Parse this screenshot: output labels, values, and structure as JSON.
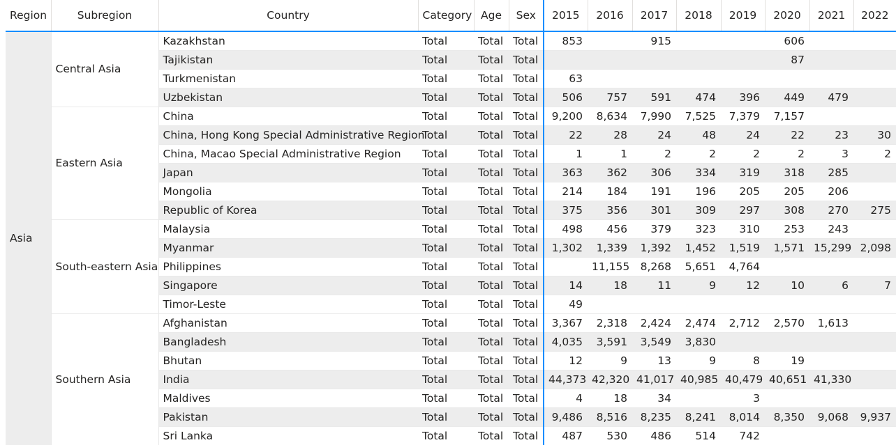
{
  "columns": [
    "Region",
    "Subregion",
    "Country",
    "Category",
    "Age",
    "Sex",
    "2015",
    "2016",
    "2017",
    "2018",
    "2019",
    "2020",
    "2021",
    "2022"
  ],
  "region": "Asia",
  "groups": [
    {
      "subregion": "Central Asia",
      "rows": [
        {
          "country": "Kazakhstan",
          "category": "Total",
          "age": "Total",
          "sex": "Total",
          "values": [
            "853",
            "",
            "915",
            "",
            "",
            "606",
            "",
            ""
          ]
        },
        {
          "country": "Tajikistan",
          "category": "Total",
          "age": "Total",
          "sex": "Total",
          "values": [
            "",
            "",
            "",
            "",
            "",
            "87",
            "",
            ""
          ]
        },
        {
          "country": "Turkmenistan",
          "category": "Total",
          "age": "Total",
          "sex": "Total",
          "values": [
            "63",
            "",
            "",
            "",
            "",
            "",
            "",
            ""
          ]
        },
        {
          "country": "Uzbekistan",
          "category": "Total",
          "age": "Total",
          "sex": "Total",
          "values": [
            "506",
            "757",
            "591",
            "474",
            "396",
            "449",
            "479",
            ""
          ]
        }
      ]
    },
    {
      "subregion": "Eastern Asia",
      "rows": [
        {
          "country": "China",
          "category": "Total",
          "age": "Total",
          "sex": "Total",
          "values": [
            "9,200",
            "8,634",
            "7,990",
            "7,525",
            "7,379",
            "7,157",
            "",
            ""
          ]
        },
        {
          "country": "China, Hong Kong Special Administrative Region",
          "category": "Total",
          "age": "Total",
          "sex": "Total",
          "values": [
            "22",
            "28",
            "24",
            "48",
            "24",
            "22",
            "23",
            "30"
          ]
        },
        {
          "country": "China, Macao Special Administrative Region",
          "category": "Total",
          "age": "Total",
          "sex": "Total",
          "values": [
            "1",
            "1",
            "2",
            "2",
            "2",
            "2",
            "3",
            "2"
          ]
        },
        {
          "country": "Japan",
          "category": "Total",
          "age": "Total",
          "sex": "Total",
          "values": [
            "363",
            "362",
            "306",
            "334",
            "319",
            "318",
            "285",
            ""
          ]
        },
        {
          "country": "Mongolia",
          "category": "Total",
          "age": "Total",
          "sex": "Total",
          "values": [
            "214",
            "184",
            "191",
            "196",
            "205",
            "205",
            "206",
            ""
          ]
        },
        {
          "country": "Republic of Korea",
          "category": "Total",
          "age": "Total",
          "sex": "Total",
          "values": [
            "375",
            "356",
            "301",
            "309",
            "297",
            "308",
            "270",
            "275"
          ]
        }
      ]
    },
    {
      "subregion": "South-eastern Asia",
      "rows": [
        {
          "country": "Malaysia",
          "category": "Total",
          "age": "Total",
          "sex": "Total",
          "values": [
            "498",
            "456",
            "379",
            "323",
            "310",
            "253",
            "243",
            ""
          ]
        },
        {
          "country": "Myanmar",
          "category": "Total",
          "age": "Total",
          "sex": "Total",
          "values": [
            "1,302",
            "1,339",
            "1,392",
            "1,452",
            "1,519",
            "1,571",
            "15,299",
            "2,098"
          ]
        },
        {
          "country": "Philippines",
          "category": "Total",
          "age": "Total",
          "sex": "Total",
          "values": [
            "",
            "11,155",
            "8,268",
            "5,651",
            "4,764",
            "",
            "",
            ""
          ]
        },
        {
          "country": "Singapore",
          "category": "Total",
          "age": "Total",
          "sex": "Total",
          "values": [
            "14",
            "18",
            "11",
            "9",
            "12",
            "10",
            "6",
            "7"
          ]
        },
        {
          "country": "Timor-Leste",
          "category": "Total",
          "age": "Total",
          "sex": "Total",
          "values": [
            "49",
            "",
            "",
            "",
            "",
            "",
            "",
            ""
          ]
        }
      ]
    },
    {
      "subregion": "Southern Asia",
      "rows": [
        {
          "country": "Afghanistan",
          "category": "Total",
          "age": "Total",
          "sex": "Total",
          "values": [
            "3,367",
            "2,318",
            "2,424",
            "2,474",
            "2,712",
            "2,570",
            "1,613",
            ""
          ]
        },
        {
          "country": "Bangladesh",
          "category": "Total",
          "age": "Total",
          "sex": "Total",
          "values": [
            "4,035",
            "3,591",
            "3,549",
            "3,830",
            "",
            "",
            "",
            ""
          ]
        },
        {
          "country": "Bhutan",
          "category": "Total",
          "age": "Total",
          "sex": "Total",
          "values": [
            "12",
            "9",
            "13",
            "9",
            "8",
            "19",
            "",
            ""
          ]
        },
        {
          "country": "India",
          "category": "Total",
          "age": "Total",
          "sex": "Total",
          "values": [
            "44,373",
            "42,320",
            "41,017",
            "40,985",
            "40,479",
            "40,651",
            "41,330",
            ""
          ]
        },
        {
          "country": "Maldives",
          "category": "Total",
          "age": "Total",
          "sex": "Total",
          "values": [
            "4",
            "18",
            "34",
            "",
            "3",
            "",
            "",
            ""
          ]
        },
        {
          "country": "Pakistan",
          "category": "Total",
          "age": "Total",
          "sex": "Total",
          "values": [
            "9,486",
            "8,516",
            "8,235",
            "8,241",
            "8,014",
            "8,350",
            "9,068",
            "9,937"
          ]
        },
        {
          "country": "Sri Lanka",
          "category": "Total",
          "age": "Total",
          "sex": "Total",
          "values": [
            "487",
            "530",
            "486",
            "514",
            "742",
            "",
            "",
            ""
          ]
        }
      ]
    }
  ],
  "colors": {
    "accent": "#118dff",
    "band": "#ededed",
    "text": "#252423"
  }
}
